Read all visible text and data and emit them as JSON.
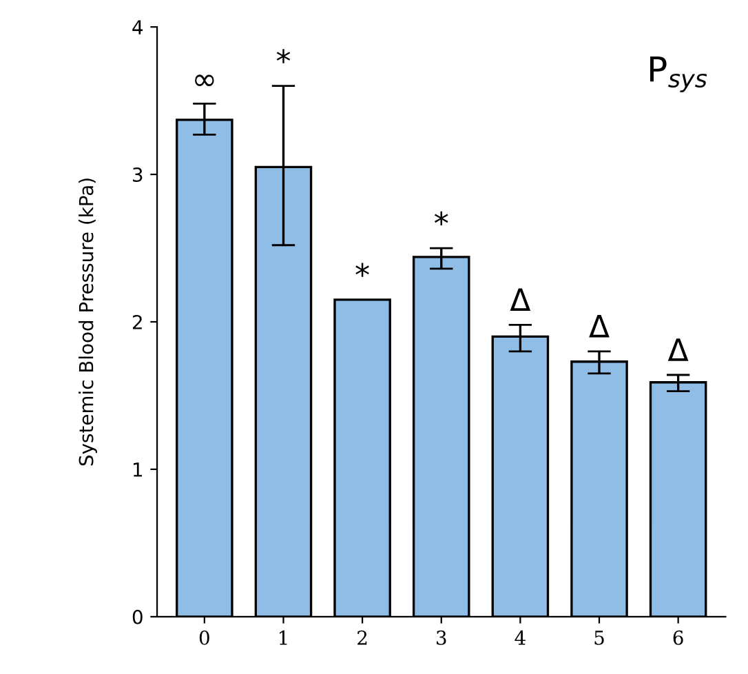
{
  "chart_data": {
    "type": "bar",
    "ylabel": "Systemic Blood Pressure (kPa)",
    "categories": [
      "0",
      "1",
      "2",
      "3",
      "4",
      "5",
      "6"
    ],
    "values": [
      3.37,
      3.05,
      2.15,
      2.44,
      1.9,
      1.73,
      1.59
    ],
    "errors": [
      [
        3.27,
        3.48
      ],
      [
        2.52,
        3.6
      ],
      null,
      [
        2.36,
        2.5
      ],
      [
        1.8,
        1.98
      ],
      [
        1.65,
        1.8
      ],
      [
        1.53,
        1.64
      ]
    ],
    "color": "#8fbde6",
    "ylim": [
      0,
      4
    ],
    "yticks": [
      0,
      1,
      2,
      3,
      4
    ],
    "grid": false,
    "legend": false,
    "annotations": [
      "P$_{sys}$",
      {
        "text": "∞",
        "x": "0",
        "y": 3.48
      },
      {
        "text": "*",
        "x": "1",
        "y": 3.6
      },
      {
        "text": "*",
        "x": "2",
        "y": 2.15
      },
      {
        "text": "*",
        "x": "3",
        "y": 2.5
      },
      {
        "text": "Δ",
        "x": "4",
        "y": 1.98
      },
      {
        "text": "Δ",
        "x": "5",
        "y": 1.8
      },
      {
        "text": "Δ",
        "x": "6",
        "y": 1.64
      }
    ]
  }
}
